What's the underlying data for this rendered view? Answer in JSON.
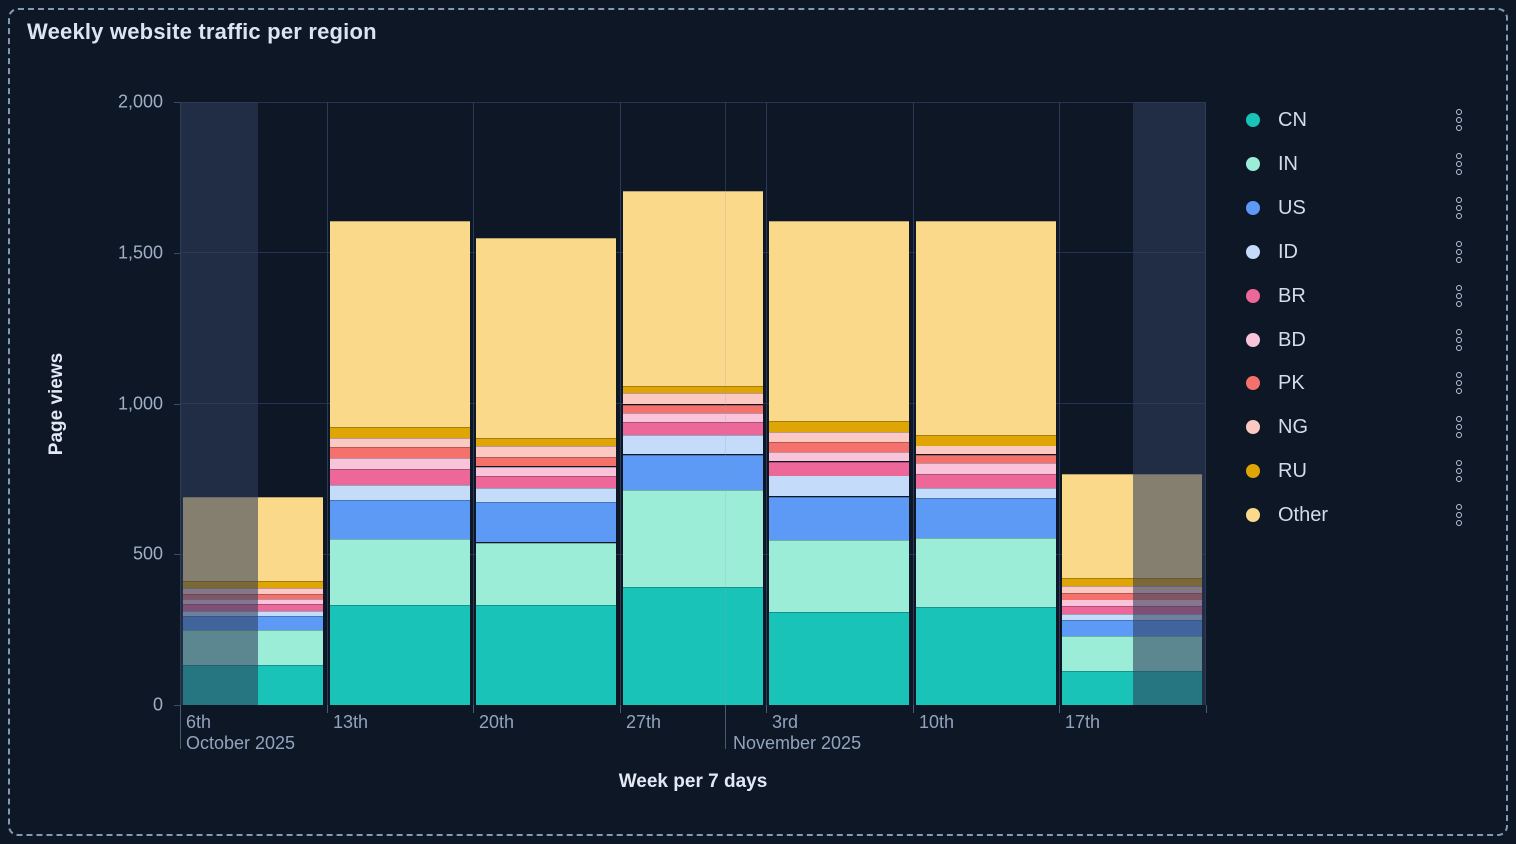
{
  "title": "Weekly website traffic per region",
  "axes": {
    "y_title": "Page views",
    "x_title": "Week per 7 days",
    "y_ticks": [
      {
        "label": "0",
        "value": 0
      },
      {
        "label": "500",
        "value": 500
      },
      {
        "label": "1,000",
        "value": 1000
      },
      {
        "label": "1,500",
        "value": 1500
      },
      {
        "label": "2,000",
        "value": 2000
      }
    ],
    "x_ticks": [
      "6th",
      "13th",
      "20th",
      "27th",
      "3rd",
      "10th",
      "17th"
    ],
    "x_secondary_ticks": [
      {
        "label": "October 2025",
        "anchor_week_fraction": 0
      },
      {
        "label": "November 2025",
        "anchor_week_fraction": 3.72
      }
    ]
  },
  "legend": {
    "position": "right",
    "kebab_icon": "kebab-menu-icon"
  },
  "chart_data": {
    "type": "bar",
    "stacked": true,
    "title": "Weekly website traffic per region",
    "xlabel": "Week per 7 days",
    "ylabel": "Page views",
    "ylim": [
      0,
      2000
    ],
    "grid": true,
    "legend_position": "right",
    "categories": [
      "6th",
      "13th",
      "20th",
      "27th",
      "3rd",
      "10th",
      "17th"
    ],
    "category_context": [
      "October 2025",
      "October 2025",
      "October 2025",
      "October 2025",
      "November 2025",
      "November 2025",
      "November 2025"
    ],
    "series": [
      {
        "name": "CN",
        "color": "#19c3b8",
        "values": [
          133,
          332,
          332,
          391,
          310,
          325,
          114
        ]
      },
      {
        "name": "IN",
        "color": "#9cedd8",
        "values": [
          116,
          218,
          207,
          323,
          238,
          229,
          115
        ]
      },
      {
        "name": "US",
        "color": "#5c9af6",
        "values": [
          47,
          131,
          133,
          117,
          144,
          133,
          53
        ]
      },
      {
        "name": "ID",
        "color": "#c4dbf9",
        "values": [
          17,
          50,
          48,
          63,
          69,
          33,
          20
        ]
      },
      {
        "name": "BR",
        "color": "#ed6798",
        "values": [
          23,
          52,
          41,
          44,
          47,
          47,
          25
        ]
      },
      {
        "name": "BD",
        "color": "#f9c3da",
        "values": [
          15,
          37,
          31,
          31,
          30,
          36,
          22
        ]
      },
      {
        "name": "PK",
        "color": "#f5726c",
        "values": [
          17,
          36,
          31,
          28,
          33,
          28,
          22
        ]
      },
      {
        "name": "NG",
        "color": "#fbc9c2",
        "values": [
          20,
          30,
          35,
          38,
          34,
          29,
          24
        ]
      },
      {
        "name": "RU",
        "color": "#dfa504",
        "values": [
          22,
          37,
          28,
          22,
          36,
          37,
          26
        ]
      },
      {
        "name": "Other",
        "color": "#fad98b",
        "values": [
          277,
          683,
          664,
          648,
          665,
          709,
          345
        ]
      }
    ],
    "partial_period_shading": {
      "first_week_left_half_dimmed": true,
      "last_week_right_half_dimmed": true,
      "overlay_color": "rgba(48,62,92,0.58)"
    },
    "month_divider_week_fraction": 3.72
  },
  "palette": {
    "background": "#0d1726",
    "frame_dash": "#8399b8",
    "gridline_v": "#2c3b58",
    "gridline_h": "#243350",
    "tick_text": "#9fb0c6",
    "title_text": "#dbe4f0"
  }
}
